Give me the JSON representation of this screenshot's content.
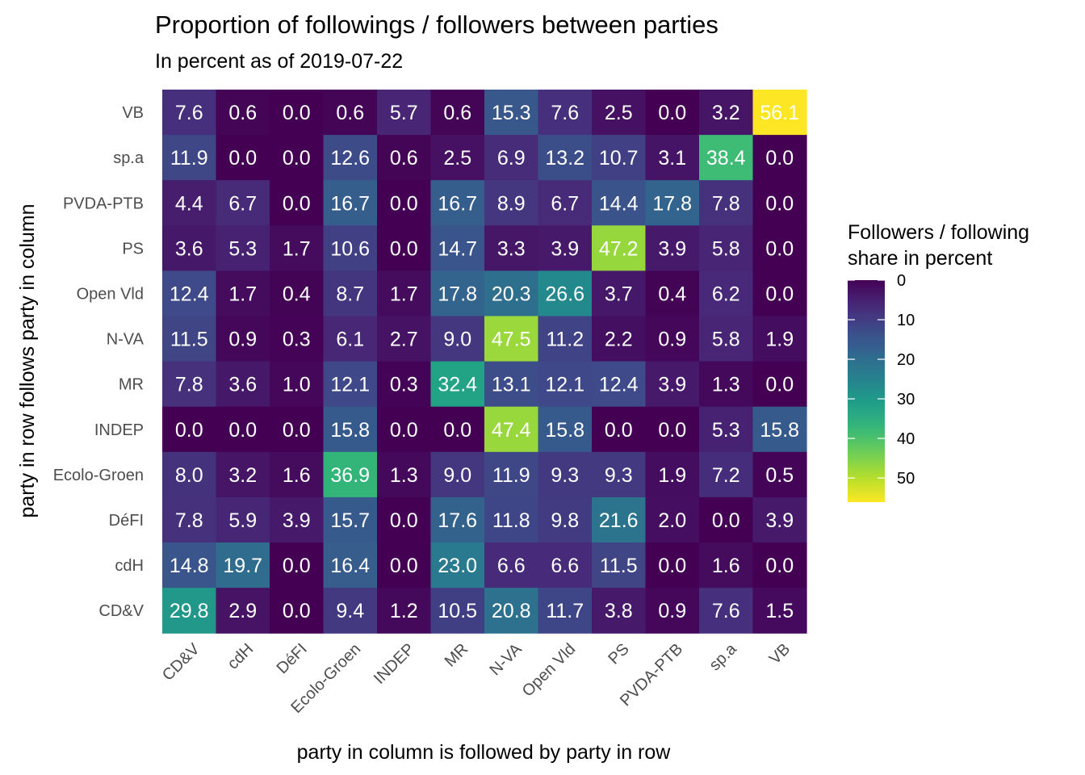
{
  "chart_data": {
    "type": "heatmap",
    "title": "Proportion of followings / followers between parties",
    "subtitle": "In percent as of 2019-07-22",
    "xlabel": "party in column is followed by party in row",
    "ylabel": "party in row follows party in column",
    "columns": [
      "CD&V",
      "cdH",
      "DéFI",
      "Ecolo-Groen",
      "INDEP",
      "MR",
      "N-VA",
      "Open Vld",
      "PS",
      "PVDA-PTB",
      "sp.a",
      "VB"
    ],
    "rows": [
      "VB",
      "sp.a",
      "PVDA-PTB",
      "PS",
      "Open Vld",
      "N-VA",
      "MR",
      "INDEP",
      "Ecolo-Groen",
      "DéFI",
      "cdH",
      "CD&V"
    ],
    "values": [
      [
        7.6,
        0.6,
        0.0,
        0.6,
        5.7,
        0.6,
        15.3,
        7.6,
        2.5,
        0.0,
        3.2,
        56.1
      ],
      [
        11.9,
        0.0,
        0.0,
        12.6,
        0.6,
        2.5,
        6.9,
        13.2,
        10.7,
        3.1,
        38.4,
        0.0
      ],
      [
        4.4,
        6.7,
        0.0,
        16.7,
        0.0,
        16.7,
        8.9,
        6.7,
        14.4,
        17.8,
        7.8,
        0.0
      ],
      [
        3.6,
        5.3,
        1.7,
        10.6,
        0.0,
        14.7,
        3.3,
        3.9,
        47.2,
        3.9,
        5.8,
        0.0
      ],
      [
        12.4,
        1.7,
        0.4,
        8.7,
        1.7,
        17.8,
        20.3,
        26.6,
        3.7,
        0.4,
        6.2,
        0.0
      ],
      [
        11.5,
        0.9,
        0.3,
        6.1,
        2.7,
        9.0,
        47.5,
        11.2,
        2.2,
        0.9,
        5.8,
        1.9
      ],
      [
        7.8,
        3.6,
        1.0,
        12.1,
        0.3,
        32.4,
        13.1,
        12.1,
        12.4,
        3.9,
        1.3,
        0.0
      ],
      [
        0.0,
        0.0,
        0.0,
        15.8,
        0.0,
        0.0,
        47.4,
        15.8,
        0.0,
        0.0,
        5.3,
        15.8
      ],
      [
        8.0,
        3.2,
        1.6,
        36.9,
        1.3,
        9.0,
        11.9,
        9.3,
        9.3,
        1.9,
        7.2,
        0.5
      ],
      [
        7.8,
        5.9,
        3.9,
        15.7,
        0.0,
        17.6,
        11.8,
        9.8,
        21.6,
        2.0,
        0.0,
        3.9
      ],
      [
        14.8,
        19.7,
        0.0,
        16.4,
        0.0,
        23.0,
        6.6,
        6.6,
        11.5,
        0.0,
        1.6,
        0.0
      ],
      [
        29.8,
        2.9,
        0.0,
        9.4,
        1.2,
        10.5,
        20.8,
        11.7,
        3.8,
        0.9,
        7.6,
        1.5
      ]
    ],
    "value_range": [
      0,
      56.1
    ],
    "colorscale": "viridis",
    "legend": {
      "title_lines": [
        "Followers / following",
        "share in percent"
      ],
      "ticks": [
        0,
        10,
        20,
        30,
        40,
        50
      ],
      "position": "right"
    },
    "grid": false
  }
}
